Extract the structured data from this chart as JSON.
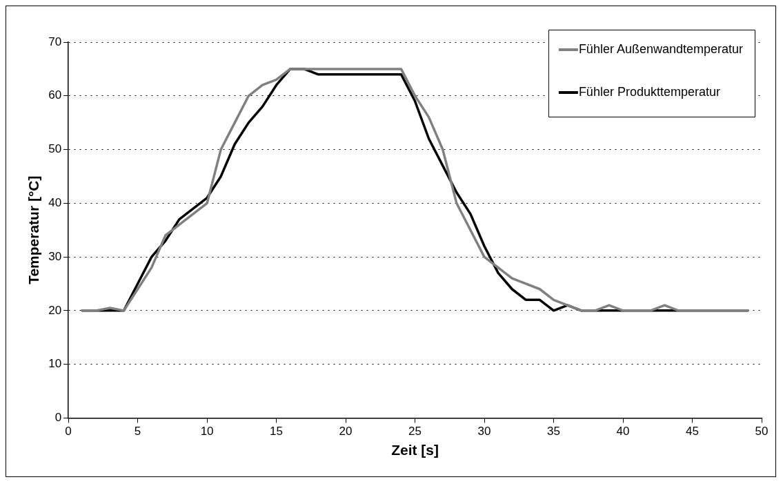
{
  "chart_data": {
    "type": "line",
    "xlabel": "Zeit [s]",
    "ylabel": "Temperatur [°C]",
    "x": [
      1,
      2,
      3,
      4,
      5,
      6,
      7,
      8,
      9,
      10,
      11,
      12,
      13,
      14,
      15,
      16,
      17,
      18,
      19,
      20,
      21,
      22,
      23,
      24,
      25,
      26,
      27,
      28,
      29,
      30,
      31,
      32,
      33,
      34,
      35,
      36,
      37,
      38,
      39,
      40,
      41,
      42,
      43,
      44,
      45,
      46,
      47,
      48,
      49
    ],
    "series": [
      {
        "name": "Fühler Außenwandtemperatur",
        "color": "#808080",
        "values": [
          20,
          20,
          20.5,
          20,
          24,
          28,
          34,
          36,
          38,
          40,
          50,
          55,
          60,
          62,
          63,
          65,
          65,
          65,
          65,
          65,
          65,
          65,
          65,
          65,
          60,
          56,
          50,
          40,
          35,
          30,
          28,
          26,
          25,
          24,
          22,
          21,
          20,
          20,
          21,
          20,
          20,
          20,
          21,
          20,
          20,
          20,
          20,
          20,
          20
        ]
      },
      {
        "name": "Fühler Produkttemperatur",
        "color": "#000000",
        "values": [
          20,
          20,
          20,
          20,
          25,
          30,
          33,
          37,
          39,
          41,
          45,
          51,
          55,
          58,
          62,
          65,
          65,
          64,
          64,
          64,
          64,
          64,
          64,
          64,
          59,
          52,
          47,
          42,
          38,
          32,
          27,
          24,
          22,
          22,
          20,
          21,
          20,
          20,
          20,
          20,
          20,
          20,
          20,
          20,
          20,
          20,
          20,
          20,
          20
        ]
      }
    ],
    "xlim": [
      0,
      50
    ],
    "xticks": [
      0,
      5,
      10,
      15,
      20,
      25,
      30,
      35,
      40,
      45,
      50
    ],
    "ylim": [
      0,
      70
    ],
    "yticks": [
      0,
      10,
      20,
      30,
      40,
      50,
      60,
      70
    ],
    "grid": "y",
    "legend": "top right",
    "marker": "none",
    "line_style": "solid"
  }
}
